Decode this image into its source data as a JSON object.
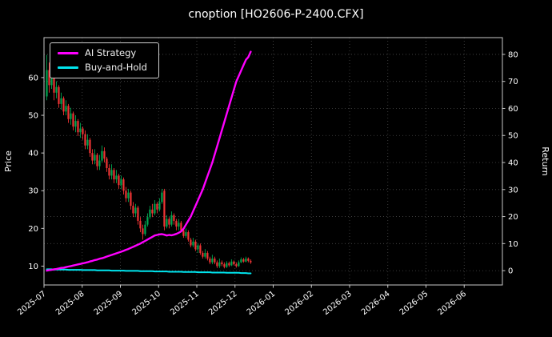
{
  "title": "cnoption [HO2606-P-2400.CFX]",
  "chart_data": {
    "type": "candlestick+line",
    "title": "cnoption [HO2606-P-2400.CFX]",
    "x_tick_labels": [
      "2025-07",
      "2025-08",
      "2025-09",
      "2025-10",
      "2025-11",
      "2025-12",
      "2026-01",
      "2026-02",
      "2026-03",
      "2026-04",
      "2026-05",
      "2026-06"
    ],
    "data_span_months": 5.4,
    "grid": true,
    "colors": {
      "background": "#000000",
      "text": "#ffffff",
      "grid": "#4a4a4a",
      "spine": "#c8c8c8",
      "up": "#00a650",
      "down": "#ef3434"
    },
    "left_axis": {
      "label": "Price",
      "ticks": [
        10,
        20,
        30,
        40,
        50,
        60
      ],
      "range": [
        5.0,
        70.6
      ]
    },
    "right_axis": {
      "label": "Return",
      "ticks": [
        0,
        10,
        20,
        30,
        40,
        50,
        60,
        70,
        80
      ],
      "range": [
        -5.3,
        86.2
      ]
    },
    "candles": {
      "format": [
        "open",
        "high",
        "low",
        "close"
      ],
      "ohlc": [
        [
          55,
          66,
          54,
          62
        ],
        [
          62,
          64,
          56,
          58
        ],
        [
          58,
          63,
          57,
          60
        ],
        [
          60,
          61,
          54,
          56
        ],
        [
          56,
          59,
          54.5,
          57.5
        ],
        [
          57.5,
          58,
          52,
          53
        ],
        [
          53,
          56,
          51.5,
          54.5
        ],
        [
          54.5,
          55,
          50,
          51
        ],
        [
          51,
          54,
          50,
          52.5
        ],
        [
          52.5,
          53,
          48,
          49
        ],
        [
          49,
          52,
          47.5,
          50.5
        ],
        [
          50.5,
          51,
          46,
          47
        ],
        [
          47,
          50,
          45.5,
          48.5
        ],
        [
          48.5,
          49,
          44.5,
          45.5
        ],
        [
          45.5,
          48,
          44,
          46.5
        ],
        [
          46.5,
          47,
          43.5,
          45
        ],
        [
          45,
          46,
          41,
          42
        ],
        [
          42,
          45,
          41,
          43.5
        ],
        [
          43.5,
          44,
          39,
          40
        ],
        [
          40,
          41,
          37,
          38
        ],
        [
          38,
          41,
          37,
          39.5
        ],
        [
          39.5,
          40,
          35.5,
          36.5
        ],
        [
          36.5,
          39.5,
          35.5,
          38
        ],
        [
          38,
          42,
          37.5,
          40.5
        ],
        [
          40.5,
          41.5,
          37.5,
          38.5
        ],
        [
          38.5,
          39,
          35,
          36
        ],
        [
          36,
          37,
          33,
          34
        ],
        [
          34,
          37,
          33,
          35.5
        ],
        [
          35.5,
          36,
          32,
          33
        ],
        [
          33,
          35.5,
          32,
          34
        ],
        [
          34,
          34.5,
          30.5,
          31.5
        ],
        [
          31.5,
          34,
          30.5,
          33
        ],
        [
          33,
          33.5,
          29,
          30
        ],
        [
          30,
          31,
          27,
          28
        ],
        [
          28,
          30.5,
          27,
          29.5
        ],
        [
          29.5,
          30,
          25,
          26
        ],
        [
          26,
          27,
          23,
          24
        ],
        [
          24,
          26.5,
          23,
          25.5
        ],
        [
          25.5,
          26,
          21,
          22
        ],
        [
          22,
          23,
          19,
          20
        ],
        [
          20,
          21,
          17,
          18.5
        ],
        [
          18.5,
          22,
          18,
          21
        ],
        [
          21,
          24,
          20.5,
          23
        ],
        [
          23,
          26,
          22.5,
          25
        ],
        [
          25,
          26.5,
          23,
          24
        ],
        [
          24,
          27.5,
          23.5,
          26.5
        ],
        [
          26.5,
          27,
          24,
          25
        ],
        [
          25,
          28,
          24.5,
          27
        ],
        [
          27,
          30.5,
          26.5,
          29.5
        ],
        [
          30,
          30.5,
          19.5,
          20.5
        ],
        [
          20.5,
          23.5,
          20,
          22.5
        ],
        [
          22.5,
          23,
          20,
          21
        ],
        [
          21,
          24.5,
          20.5,
          23.5
        ],
        [
          23.5,
          24,
          21,
          22
        ],
        [
          22,
          22.5,
          19.5,
          20.5
        ],
        [
          20.5,
          22.5,
          19.5,
          21.5
        ],
        [
          21.5,
          22,
          19,
          19.5
        ],
        [
          19.5,
          20,
          17.5,
          18
        ],
        [
          18,
          20,
          17.5,
          19
        ],
        [
          19,
          19.5,
          16.5,
          17
        ],
        [
          17,
          17.5,
          15,
          15.5
        ],
        [
          15.5,
          17.5,
          15,
          16.5
        ],
        [
          16.5,
          17,
          14,
          14.5
        ],
        [
          14.5,
          16,
          13.5,
          15.5
        ],
        [
          15.5,
          16,
          13,
          13.5
        ],
        [
          13.5,
          14,
          12,
          12.5
        ],
        [
          12.5,
          14.5,
          12,
          13.5
        ],
        [
          13.5,
          14,
          11.5,
          12
        ],
        [
          12,
          12.5,
          10.5,
          11
        ],
        [
          11,
          13,
          10.5,
          12
        ],
        [
          12,
          12.5,
          10.5,
          11
        ],
        [
          11,
          11.5,
          9.5,
          10
        ],
        [
          10,
          12,
          9.5,
          11
        ],
        [
          11,
          11.5,
          10,
          10.5
        ],
        [
          10.5,
          11,
          9.4,
          9.8
        ],
        [
          9.8,
          11.3,
          9.5,
          10.8
        ],
        [
          10.8,
          11.2,
          9.8,
          10.2
        ],
        [
          10.2,
          11.8,
          10,
          11.2
        ],
        [
          11.2,
          11.5,
          10.2,
          10.5
        ],
        [
          10.5,
          11,
          9.6,
          10
        ],
        [
          10,
          11.5,
          9.8,
          11
        ],
        [
          11,
          12.3,
          10.8,
          11.8
        ],
        [
          11.8,
          12.2,
          10.9,
          11.2
        ],
        [
          11.2,
          12.5,
          11,
          12
        ],
        [
          12,
          12.3,
          11,
          11.4
        ],
        [
          11.4,
          11.8,
          10.6,
          11
        ]
      ]
    },
    "series": [
      {
        "name": "AI Strategy",
        "axis": "right",
        "color": "#ff00ff",
        "width": 2.4,
        "values": [
          0,
          0.2,
          0.3,
          0.5,
          0.6,
          0.8,
          1.0,
          1.1,
          1.3,
          1.5,
          1.7,
          1.9,
          2.1,
          2.3,
          2.5,
          2.7,
          2.9,
          3.1,
          3.4,
          3.6,
          3.9,
          4.1,
          4.4,
          4.6,
          4.9,
          5.2,
          5.5,
          5.8,
          6.1,
          6.4,
          6.7,
          7.0,
          7.3,
          7.7,
          8.0,
          8.4,
          8.8,
          9.2,
          9.6,
          10.0,
          10.5,
          11.0,
          11.5,
          12.0,
          12.5,
          13.0,
          13.2,
          13.4,
          13.5,
          13.3,
          13.0,
          13.2,
          13.1,
          13.3,
          13.6,
          14.0,
          14.5,
          15.5,
          17.0,
          18.5,
          20.0,
          22.0,
          24.0,
          26.0,
          28.0,
          30.0,
          32.5,
          35.0,
          37.5,
          40.0,
          43.0,
          46.0,
          49.0,
          52.0,
          55.0,
          58.0,
          61.0,
          64.0,
          67.0,
          70.0,
          72.0,
          74.0,
          76.0,
          78.0,
          79.0,
          81.0
        ]
      },
      {
        "name": "Buy-and-Hold",
        "axis": "right",
        "color": "#00e5ee",
        "width": 2.0,
        "values": [
          0.5,
          0.5,
          0.5,
          0.4,
          0.4,
          0.4,
          0.4,
          0.4,
          0.4,
          0.3,
          0.3,
          0.3,
          0.3,
          0.3,
          0.3,
          0.2,
          0.2,
          0.2,
          0.2,
          0.2,
          0.2,
          0.1,
          0.1,
          0.1,
          0.1,
          0.1,
          0.1,
          0.0,
          0.0,
          0.0,
          0.0,
          0.0,
          0.0,
          -0.1,
          -0.1,
          -0.1,
          -0.1,
          -0.1,
          -0.1,
          -0.2,
          -0.2,
          -0.2,
          -0.2,
          -0.2,
          -0.2,
          -0.3,
          -0.3,
          -0.3,
          -0.3,
          -0.3,
          -0.3,
          -0.4,
          -0.4,
          -0.4,
          -0.4,
          -0.4,
          -0.4,
          -0.5,
          -0.5,
          -0.5,
          -0.5,
          -0.5,
          -0.5,
          -0.6,
          -0.6,
          -0.6,
          -0.6,
          -0.6,
          -0.6,
          -0.7,
          -0.7,
          -0.7,
          -0.7,
          -0.7,
          -0.7,
          -0.8,
          -0.8,
          -0.8,
          -0.8,
          -0.8,
          -0.8,
          -0.9,
          -0.9,
          -0.9,
          -1.0,
          -1.0
        ]
      }
    ],
    "legend_position": "upper-left"
  }
}
